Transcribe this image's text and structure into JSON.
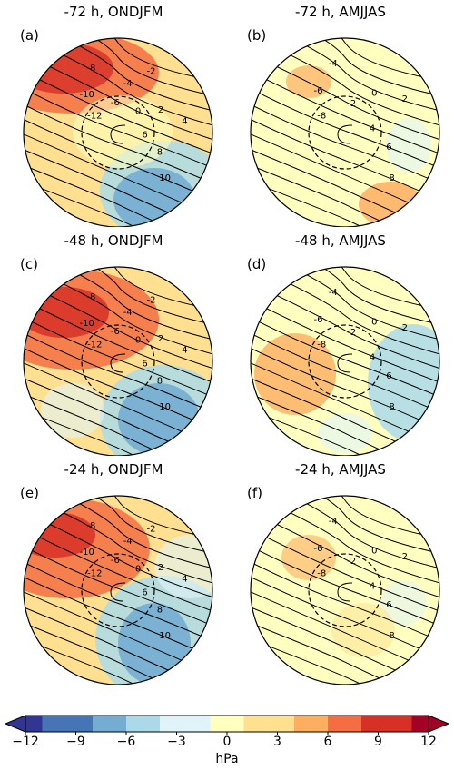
{
  "chart_data": {
    "type": "heatmap",
    "panels": [
      {
        "letter": "(a)",
        "title": "-72 h, ONDJFM"
      },
      {
        "letter": "(b)",
        "title": "-72 h, AMJJAS"
      },
      {
        "letter": "(c)",
        "title": "-48 h, ONDJFM"
      },
      {
        "letter": "(d)",
        "title": "-48 h, AMJJAS"
      },
      {
        "letter": "(e)",
        "title": "-24 h, ONDJFM"
      },
      {
        "letter": "(f)",
        "title": "-24 h, AMJJAS"
      }
    ],
    "colorbar": {
      "label": "hPa",
      "range": [
        -12,
        12
      ],
      "ticks": [
        "−12",
        "−9",
        "−6",
        "−3",
        "0",
        "3",
        "6",
        "9",
        "12"
      ],
      "colors": [
        "#313695",
        "#4575b4",
        "#74add1",
        "#abd9e9",
        "#e0f3f8",
        "#ffffbf",
        "#fee090",
        "#fdae61",
        "#f46d43",
        "#d73027",
        "#a50026"
      ]
    },
    "contour_labels": {
      "a": [
        "-12",
        "-10",
        "-8",
        "-6",
        "-4",
        "-2",
        "0",
        "2",
        "4",
        "6",
        "8",
        "10"
      ],
      "b": [
        "-8",
        "-6",
        "-4",
        "-2",
        "0",
        "2",
        "4",
        "6",
        "8"
      ],
      "c": [
        "-12",
        "-10",
        "-8",
        "-6",
        "-4",
        "-2",
        "0",
        "2",
        "4",
        "6",
        "8",
        "10"
      ],
      "d": [
        "-8",
        "-6",
        "-4",
        "-2",
        "0",
        "2",
        "4",
        "6",
        "8"
      ],
      "e": [
        "-12",
        "-10",
        "-8",
        "-6",
        "-4",
        "-2",
        "0",
        "2",
        "4",
        "6",
        "8",
        "10"
      ],
      "f": [
        "-8",
        "-6",
        "-4",
        "-2",
        "0",
        "2",
        "4",
        "6",
        "8"
      ]
    }
  }
}
